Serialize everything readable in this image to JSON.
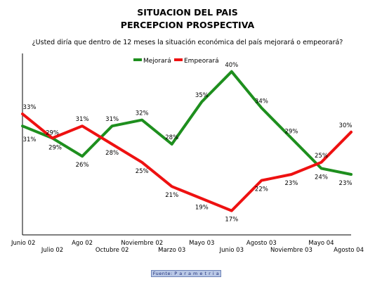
{
  "title_line1": "SITUACION DEL PAIS",
  "title_line2": "PERCEPCION PROSPECTIVA",
  "question": "¿Usted diría que dentro de 12 meses la situación económica del país mejorará o empeorará?",
  "source": "Fuente: P a r a m e t r i a",
  "colors": {
    "mejorara": "#1e8f1e",
    "empeorara": "#ee1111"
  },
  "chart_data": {
    "type": "line",
    "title": "SITUACION DEL PAIS / PERCEPCION PROSPECTIVA",
    "categories": [
      "Junio 02",
      "Julio 02",
      "Ago 02",
      "Octubre 02",
      "Noviembre 02",
      "Marzo 03",
      "Mayo 03",
      "Junio 03",
      "Agosto 03",
      "Noviembre 03",
      "Mayo 04",
      "Agosto 04"
    ],
    "series": [
      {
        "name": "Mejorará",
        "values": [
          31,
          29,
          26,
          31,
          32,
          28,
          35,
          40,
          34,
          29,
          24,
          23
        ]
      },
      {
        "name": "Empeorará",
        "values": [
          33,
          29,
          31,
          28,
          25,
          21,
          19,
          17,
          22,
          23,
          25,
          30
        ]
      }
    ],
    "ylim": [
      13,
      43
    ],
    "legend": "top-center",
    "grid": false
  }
}
